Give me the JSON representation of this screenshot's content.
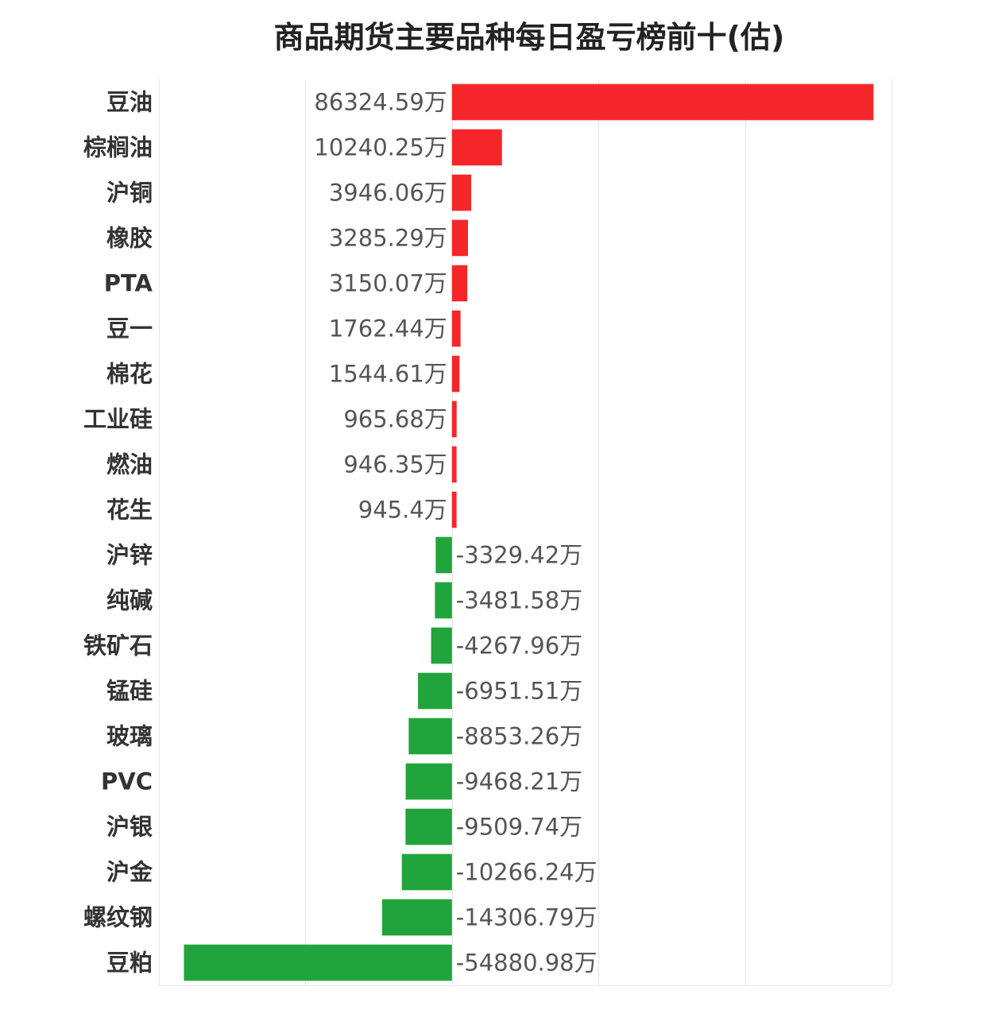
{
  "chart_data": {
    "type": "bar",
    "orientation": "horizontal",
    "title": "商品期货主要品种每日盈亏榜前十(估)",
    "unit": "万",
    "categories": [
      "豆油",
      "棕榈油",
      "沪铜",
      "橡胶",
      "PTA",
      "豆一",
      "棉花",
      "工业硅",
      "燃油",
      "花生",
      "沪锌",
      "纯碱",
      "铁矿石",
      "锰硅",
      "玻璃",
      "PVC",
      "沪银",
      "沪金",
      "螺纹钢",
      "豆粕"
    ],
    "values": [
      86324.59,
      10240.25,
      3946.06,
      3285.29,
      3150.07,
      1762.44,
      1544.61,
      965.68,
      946.35,
      945.4,
      -3329.42,
      -3481.58,
      -4267.96,
      -6951.51,
      -8853.26,
      -9468.21,
      -9509.74,
      -10266.24,
      -14306.79,
      -54880.98
    ],
    "labels": [
      "86324.59万",
      "10240.25万",
      "3946.06万",
      "3285.29万",
      "3150.07万",
      "1762.44万",
      "1544.61万",
      "965.68万",
      "946.35万",
      "945.4万",
      "-3329.42万",
      "-3481.58万",
      "-4267.96万",
      "-6951.51万",
      "-8853.26万",
      "-9468.21万",
      "-9509.74万",
      "-10266.24万",
      "-14306.79万",
      "-54880.98万"
    ],
    "xlim": [
      -60000,
      90000
    ],
    "grid": true,
    "legend": "none",
    "colors": {
      "positive": "#f5262a",
      "negative": "#22a43c"
    }
  }
}
